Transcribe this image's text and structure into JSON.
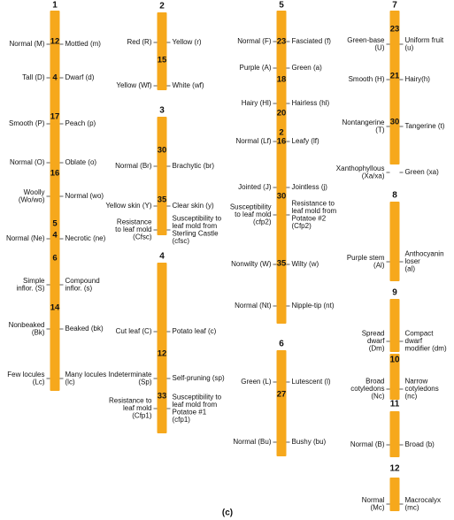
{
  "chromosomes": [
    {
      "number": "1",
      "distances": [
        12,
        4,
        17,
        16,
        5,
        4,
        6,
        14
      ],
      "traits": [
        {
          "dominant": [
            "Normal (M)"
          ],
          "recessive": [
            "Mottled (m)"
          ]
        },
        {
          "dominant": [
            "Tall (D)"
          ],
          "recessive": [
            "Dwarf (d)"
          ]
        },
        {
          "dominant": [
            "Smooth (P)"
          ],
          "recessive": [
            "Peach (p)"
          ]
        },
        {
          "dominant": [
            "Normal (O)"
          ],
          "recessive": [
            "Oblate (o)"
          ]
        },
        {
          "dominant": [
            "Woolly",
            "(Wo/wo)"
          ],
          "recessive": [
            "Normal (wo)"
          ]
        },
        {
          "dominant": [
            "Normal (Ne)"
          ],
          "recessive": [
            "Necrotic (ne)"
          ]
        },
        {
          "dominant": [
            "Simple",
            "inflor. (S)"
          ],
          "recessive": [
            "Compound",
            "inflor. (s)"
          ]
        },
        {
          "dominant": [
            "Nonbeaked",
            "(Bk)"
          ],
          "recessive": [
            "Beaked (bk)"
          ]
        },
        {
          "dominant": [
            "Few locules",
            "(Lc)"
          ],
          "recessive": [
            "Many locules",
            "(lc)"
          ]
        }
      ]
    },
    {
      "number": "2",
      "distances": [
        15
      ],
      "traits": [
        {
          "dominant": [
            "Red (R)"
          ],
          "recessive": [
            "Yellow (r)"
          ]
        },
        {
          "dominant": [
            "Yellow (Wf)"
          ],
          "recessive": [
            "White (wf)"
          ]
        }
      ]
    },
    {
      "number": "3",
      "distances": [
        30,
        35
      ],
      "traits": [
        {
          "dominant": [
            "Normal (Br)"
          ],
          "recessive": [
            "Brachytic (br)"
          ]
        },
        {
          "dominant": [
            "Yellow skin (Y)"
          ],
          "recessive": [
            "Clear skin (y)"
          ]
        },
        {
          "dominant": [
            "Resistance",
            "to leaf mold",
            "(Cfsc)"
          ],
          "recessive": [
            "Susceptibility to",
            "leaf mold from",
            "Sterling Castle",
            "(cfsc)"
          ]
        }
      ]
    },
    {
      "number": "4",
      "distances": [
        12,
        33
      ],
      "traits": [
        {
          "dominant": [
            "Cut leaf (C)"
          ],
          "recessive": [
            "Potato leaf (c)"
          ]
        },
        {
          "dominant": [
            "Indeterminate",
            "(Sp)"
          ],
          "recessive": [
            "Self-pruning (sp)"
          ]
        },
        {
          "dominant": [
            "Resistance to",
            "leaf mold",
            "(Cfp1)"
          ],
          "recessive": [
            "Susceptibility to",
            "leaf mold from",
            "Potatoe #1",
            "(cfp1)"
          ]
        }
      ]
    },
    {
      "number": "5",
      "distances": [
        23,
        18,
        20,
        2,
        16,
        30,
        35
      ],
      "traits": [
        {
          "dominant": [
            "Normal (F)"
          ],
          "recessive": [
            "Fasciated (f)"
          ]
        },
        {
          "dominant": [
            "Purple (A)"
          ],
          "recessive": [
            "Green (a)"
          ]
        },
        {
          "dominant": [
            "Hairy (Hl)"
          ],
          "recessive": [
            "Hairless (hl)"
          ]
        },
        {
          "dominant": [
            "Normal (Lf)"
          ],
          "recessive": [
            "Leafy (lf)"
          ]
        },
        {
          "dominant": [
            "Jointed (J)"
          ],
          "recessive": [
            "Jointless (j)"
          ]
        },
        {
          "dominant": [
            "Susceptibility",
            "to leaf mold",
            "(cfp2)"
          ],
          "recessive": [
            "Resistance to",
            "leaf mold from",
            "Potatoe #2",
            "(Cfp2)"
          ]
        },
        {
          "dominant": [
            "Nonwilty (W)"
          ],
          "recessive": [
            "Wilty (w)"
          ]
        },
        {
          "dominant": [
            "Normal (Nt)"
          ],
          "recessive": [
            "Nipple-tip (nt)"
          ]
        }
      ]
    },
    {
      "number": "6",
      "distances": [
        27
      ],
      "traits": [
        {
          "dominant": [
            "Green (L)"
          ],
          "recessive": [
            "Lutescent (l)"
          ]
        },
        {
          "dominant": [
            "Normal (Bu)"
          ],
          "recessive": [
            "Bushy (bu)"
          ]
        }
      ]
    },
    {
      "number": "7",
      "distances": [
        23,
        21,
        30
      ],
      "traits": [
        {
          "dominant": [
            "Green-base",
            "(U)"
          ],
          "recessive": [
            "Uniform fruit",
            "(u)"
          ]
        },
        {
          "dominant": [
            "Smooth (H)"
          ],
          "recessive": [
            "Hairy(h)"
          ]
        },
        {
          "dominant": [
            "Nontangerine",
            "(T)"
          ],
          "recessive": [
            "Tangerine (t)"
          ]
        },
        {
          "dominant": [
            "Xanthophyllous",
            "(Xa/xa)"
          ],
          "recessive": [
            "Green (xa)"
          ]
        }
      ]
    },
    {
      "number": "8",
      "distances": [],
      "traits": [
        {
          "dominant": [
            "Purple stem",
            "(Al)"
          ],
          "recessive": [
            "Anthocyanin",
            "loser",
            "(al)"
          ]
        }
      ]
    },
    {
      "number": "9",
      "distances": [],
      "traits": [
        {
          "dominant": [
            "Spread",
            "dwarf",
            "(Dm)"
          ],
          "recessive": [
            "Compact",
            "dwarf",
            "modifier (dm)"
          ]
        }
      ]
    },
    {
      "number": "10",
      "distances": [],
      "traits": [
        {
          "dominant": [
            "Broad",
            "cotyledons",
            "(Nc)"
          ],
          "recessive": [
            "Narrow",
            "cotyledons",
            "(nc)"
          ]
        }
      ]
    },
    {
      "number": "11",
      "distances": [],
      "traits": [
        {
          "dominant": [
            "Normal (B)"
          ],
          "recessive": [
            "Broad (b)"
          ]
        }
      ]
    },
    {
      "number": "12",
      "distances": [],
      "traits": [
        {
          "dominant": [
            "Normal",
            "(Mc)"
          ],
          "recessive": [
            "Macrocalyx",
            "(mc)"
          ]
        }
      ]
    }
  ],
  "caption": "(c)"
}
